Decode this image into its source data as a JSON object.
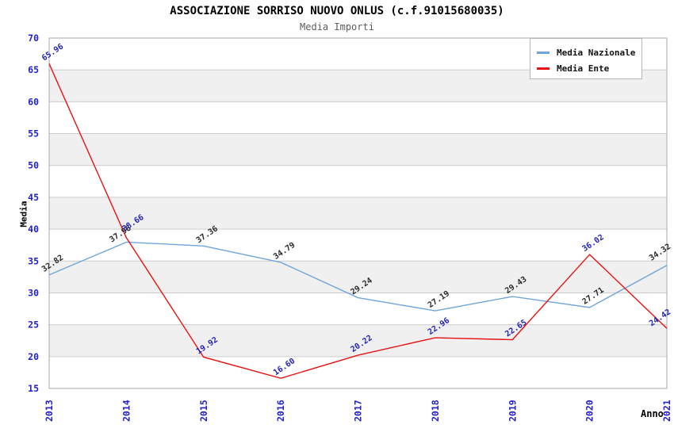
{
  "header": {
    "title": "ASSOCIAZIONE SORRISO NUOVO ONLUS (c.f.91015680035)",
    "subtitle": "Media Importi"
  },
  "chart_data": {
    "type": "line",
    "title": "ASSOCIAZIONE SORRISO NUOVO ONLUS (c.f.91015680035)",
    "subtitle": "Media Importi",
    "xlabel": "Anno",
    "ylabel": "Media",
    "x": [
      "2013",
      "2014",
      "2015",
      "2016",
      "2017",
      "2018",
      "2019",
      "2020",
      "2021"
    ],
    "series": [
      {
        "name": "Media Nazionale",
        "color": "#6fa5dc",
        "label_color": "#2a2a2a",
        "values": [
          32.82,
          37.96,
          37.36,
          34.79,
          29.24,
          27.19,
          29.43,
          27.71,
          34.32
        ]
      },
      {
        "name": "Media Ente",
        "color": "#e81111",
        "label_color": "#2222bb",
        "values": [
          65.96,
          38.66,
          19.92,
          16.6,
          20.22,
          22.96,
          22.65,
          36.02,
          24.42
        ]
      }
    ],
    "ylim": [
      15,
      70
    ],
    "ytick_step": 5,
    "grid": "horizontal",
    "legend_position": "top-right",
    "band_colors": [
      "#ffffff",
      "#f0f0f0"
    ],
    "grid_color": "#cccccc",
    "border_color": "#aaaaaa",
    "tick_label_color": "#2020cc"
  }
}
